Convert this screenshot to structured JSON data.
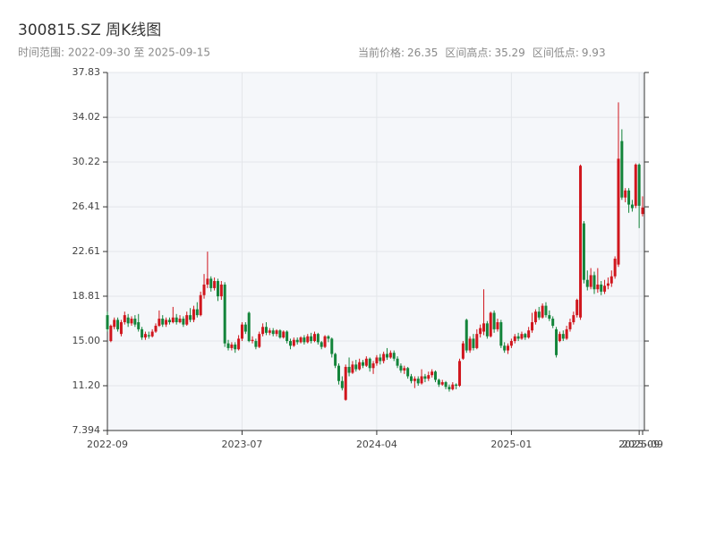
{
  "chart_data": {
    "type": "candlestick",
    "title": "300815.SZ 周K线图",
    "subtitle": "时间范围: 2022-09-30 至 2025-09-15",
    "stats": [
      {
        "label": "当前价格:",
        "value": 26.35
      },
      {
        "label": "区间高点:",
        "value": 35.29
      },
      {
        "label": "区间低点:",
        "value": 9.93
      }
    ],
    "up_color": "#d0161d",
    "down_color": "#13843a",
    "grid": true,
    "ylim": [
      7.394,
      37.83
    ],
    "yticks": [
      7.394,
      {
        "value": 11.2,
        "label": "11.20"
      },
      {
        "value": 15,
        "label": "15.00"
      },
      18.81,
      22.61,
      26.41,
      30.22,
      34.02,
      37.83
    ],
    "categories": [
      "2022-09",
      null,
      null,
      null,
      null,
      null,
      null,
      null,
      null,
      null,
      null,
      null,
      null,
      null,
      null,
      null,
      null,
      null,
      null,
      null,
      null,
      null,
      null,
      null,
      null,
      null,
      null,
      null,
      null,
      null,
      null,
      null,
      null,
      null,
      null,
      null,
      null,
      null,
      null,
      "2023-07",
      null,
      null,
      null,
      null,
      null,
      null,
      null,
      null,
      null,
      null,
      null,
      null,
      null,
      null,
      null,
      null,
      null,
      null,
      null,
      null,
      null,
      null,
      null,
      null,
      null,
      null,
      null,
      null,
      null,
      null,
      null,
      null,
      null,
      null,
      null,
      null,
      null,
      null,
      "2024-04",
      null,
      null,
      null,
      null,
      null,
      null,
      null,
      null,
      null,
      null,
      null,
      null,
      null,
      null,
      null,
      null,
      null,
      null,
      null,
      null,
      null,
      null,
      null,
      null,
      null,
      null,
      null,
      null,
      null,
      null,
      null,
      null,
      null,
      null,
      null,
      null,
      null,
      null,
      "2025-01",
      null,
      null,
      null,
      null,
      null,
      null,
      null,
      null,
      null,
      null,
      null,
      null,
      null,
      null,
      null,
      null,
      null,
      null,
      null,
      null,
      null,
      null,
      null,
      null,
      null,
      null,
      null,
      null,
      null,
      null,
      null,
      null,
      null,
      null,
      null,
      null,
      "2025-09",
      "2025-09"
    ],
    "values": [
      [
        17.2,
        16.0,
        15.8,
        17.5
      ],
      [
        15.0,
        16.3,
        14.9,
        16.4
      ],
      [
        16.2,
        16.8,
        16.0,
        17.0
      ],
      [
        16.8,
        16.0,
        15.8,
        17.0
      ],
      [
        15.6,
        16.6,
        15.4,
        16.8
      ],
      [
        16.6,
        17.2,
        16.4,
        17.5
      ],
      [
        17.0,
        16.5,
        16.2,
        17.3
      ],
      [
        16.5,
        16.9,
        16.3,
        17.1
      ],
      [
        16.9,
        16.4,
        16.2,
        17.2
      ],
      [
        16.6,
        16.0,
        15.8,
        17.3
      ],
      [
        16.0,
        15.3,
        15.1,
        16.2
      ],
      [
        15.3,
        15.6,
        15.1,
        15.8
      ],
      [
        15.5,
        15.4,
        15.2,
        15.8
      ],
      [
        15.4,
        15.8,
        15.3,
        16.0
      ],
      [
        15.8,
        16.3,
        15.7,
        16.5
      ],
      [
        16.3,
        16.9,
        16.2,
        17.6
      ],
      [
        16.9,
        16.4,
        16.2,
        17.2
      ],
      [
        16.4,
        16.8,
        16.2,
        17.0
      ],
      [
        16.8,
        16.6,
        16.4,
        17.0
      ],
      [
        16.6,
        17.0,
        16.5,
        17.9
      ],
      [
        17.0,
        16.6,
        16.4,
        17.3
      ],
      [
        16.6,
        16.9,
        16.5,
        17.2
      ],
      [
        16.9,
        16.4,
        16.2,
        17.1
      ],
      [
        16.4,
        17.2,
        16.3,
        17.5
      ],
      [
        17.2,
        16.8,
        16.6,
        17.8
      ],
      [
        16.8,
        17.7,
        16.6,
        18.0
      ],
      [
        17.7,
        17.2,
        17.0,
        18.3
      ],
      [
        17.2,
        18.9,
        17.1,
        19.2
      ],
      [
        18.9,
        19.8,
        18.6,
        20.7
      ],
      [
        19.8,
        20.3,
        19.5,
        22.6
      ],
      [
        20.3,
        19.5,
        19.2,
        20.5
      ],
      [
        19.5,
        20.1,
        19.3,
        20.4
      ],
      [
        20.1,
        18.8,
        18.4,
        20.3
      ],
      [
        18.8,
        19.8,
        18.5,
        20.1
      ],
      [
        19.8,
        14.8,
        14.5,
        20.0
      ],
      [
        14.8,
        14.4,
        14.2,
        15.1
      ],
      [
        14.4,
        14.7,
        14.2,
        14.9
      ],
      [
        14.7,
        14.3,
        14.0,
        14.9
      ],
      [
        14.3,
        15.2,
        14.2,
        15.5
      ],
      [
        15.2,
        16.4,
        15.0,
        16.6
      ],
      [
        16.4,
        15.8,
        15.6,
        16.6
      ],
      [
        17.4,
        15.0,
        14.9,
        17.5
      ],
      [
        15.0,
        15.1,
        14.8,
        15.4
      ],
      [
        15.0,
        14.5,
        14.3,
        15.2
      ],
      [
        14.5,
        15.6,
        14.4,
        15.8
      ],
      [
        15.6,
        16.2,
        15.4,
        16.5
      ],
      [
        16.2,
        15.7,
        15.5,
        16.6
      ],
      [
        15.7,
        15.9,
        15.5,
        16.1
      ],
      [
        15.9,
        15.6,
        15.4,
        16.1
      ],
      [
        15.6,
        15.9,
        15.4,
        16.0
      ],
      [
        15.9,
        15.3,
        15.2,
        16.0
      ],
      [
        15.3,
        15.8,
        15.2,
        15.9
      ],
      [
        15.8,
        15.0,
        14.8,
        15.9
      ],
      [
        15.0,
        14.6,
        14.3,
        15.2
      ],
      [
        14.6,
        15.1,
        14.5,
        15.3
      ],
      [
        15.1,
        14.9,
        14.7,
        15.3
      ],
      [
        14.9,
        15.3,
        14.8,
        15.4
      ],
      [
        15.3,
        14.9,
        14.7,
        15.5
      ],
      [
        14.9,
        15.4,
        14.8,
        15.6
      ],
      [
        15.4,
        15.0,
        14.8,
        15.7
      ],
      [
        15.0,
        15.6,
        14.9,
        15.8
      ],
      [
        15.6,
        14.9,
        14.7,
        15.7
      ],
      [
        14.9,
        14.5,
        14.3,
        15.0
      ],
      [
        14.5,
        15.4,
        14.4,
        15.5
      ],
      [
        15.4,
        15.2,
        14.9,
        15.5
      ],
      [
        15.2,
        13.9,
        13.6,
        15.3
      ],
      [
        13.9,
        12.9,
        12.7,
        14.0
      ],
      [
        12.9,
        11.6,
        11.3,
        13.1
      ],
      [
        11.6,
        11.0,
        10.8,
        12.0
      ],
      [
        10.0,
        12.8,
        9.93,
        13.0
      ],
      [
        12.8,
        12.3,
        12.0,
        13.6
      ],
      [
        12.3,
        13.0,
        12.2,
        13.3
      ],
      [
        13.0,
        12.6,
        12.4,
        13.4
      ],
      [
        12.6,
        13.2,
        12.5,
        13.5
      ],
      [
        13.2,
        12.9,
        12.7,
        13.4
      ],
      [
        12.9,
        13.5,
        12.8,
        13.7
      ],
      [
        13.5,
        12.7,
        12.4,
        13.6
      ],
      [
        12.7,
        13.1,
        12.2,
        13.3
      ],
      [
        13.1,
        13.6,
        12.9,
        13.8
      ],
      [
        13.6,
        13.3,
        13.0,
        13.9
      ],
      [
        13.3,
        13.9,
        13.1,
        14.1
      ],
      [
        13.9,
        13.6,
        13.4,
        14.4
      ],
      [
        13.6,
        14.0,
        13.5,
        14.2
      ],
      [
        14.0,
        13.5,
        13.3,
        14.2
      ],
      [
        13.5,
        12.9,
        12.7,
        13.7
      ],
      [
        12.9,
        12.5,
        12.3,
        13.1
      ],
      [
        12.5,
        12.7,
        12.2,
        12.9
      ],
      [
        12.7,
        12.0,
        11.8,
        12.8
      ],
      [
        12.0,
        11.6,
        11.4,
        12.2
      ],
      [
        11.6,
        11.8,
        11.0,
        12.0
      ],
      [
        11.8,
        11.4,
        11.2,
        12.0
      ],
      [
        11.4,
        12.0,
        11.3,
        12.6
      ],
      [
        12.0,
        11.8,
        11.5,
        12.2
      ],
      [
        11.8,
        12.1,
        11.6,
        12.4
      ],
      [
        12.1,
        12.4,
        11.9,
        12.6
      ],
      [
        12.4,
        11.7,
        11.5,
        12.5
      ],
      [
        11.7,
        11.3,
        11.1,
        11.8
      ],
      [
        11.3,
        11.5,
        11.2,
        11.7
      ],
      [
        11.5,
        11.1,
        10.9,
        11.6
      ],
      [
        11.1,
        10.9,
        10.7,
        11.3
      ],
      [
        10.9,
        11.3,
        10.8,
        11.5
      ],
      [
        11.3,
        11.2,
        10.9,
        11.4
      ],
      [
        11.2,
        13.3,
        11.1,
        13.5
      ],
      [
        13.5,
        14.8,
        13.4,
        15.0
      ],
      [
        16.8,
        14.2,
        14.0,
        16.9
      ],
      [
        14.2,
        15.2,
        14.0,
        15.4
      ],
      [
        15.2,
        14.4,
        14.2,
        15.6
      ],
      [
        14.4,
        15.6,
        14.3,
        16.0
      ],
      [
        15.6,
        16.1,
        15.3,
        16.4
      ],
      [
        15.8,
        16.5,
        15.5,
        19.4
      ],
      [
        16.5,
        15.4,
        15.2,
        16.7
      ],
      [
        15.4,
        17.4,
        15.3,
        17.5
      ],
      [
        17.4,
        16.0,
        15.7,
        17.6
      ],
      [
        16.0,
        16.6,
        15.8,
        16.9
      ],
      [
        16.6,
        14.6,
        14.4,
        16.8
      ],
      [
        14.6,
        14.2,
        14.0,
        14.9
      ],
      [
        14.2,
        14.6,
        13.9,
        14.8
      ],
      [
        14.6,
        15.0,
        14.4,
        15.2
      ],
      [
        15.0,
        15.4,
        14.8,
        15.6
      ],
      [
        15.4,
        15.2,
        15.0,
        15.7
      ],
      [
        15.2,
        15.6,
        15.1,
        15.8
      ],
      [
        15.6,
        15.3,
        15.1,
        15.7
      ],
      [
        15.3,
        15.9,
        15.2,
        16.2
      ],
      [
        15.9,
        16.6,
        15.7,
        17.4
      ],
      [
        16.6,
        17.5,
        16.4,
        17.7
      ],
      [
        17.5,
        17.0,
        16.8,
        17.9
      ],
      [
        17.0,
        18.0,
        16.9,
        18.2
      ],
      [
        18.0,
        17.2,
        17.0,
        18.3
      ],
      [
        17.2,
        16.9,
        16.7,
        17.6
      ],
      [
        16.9,
        16.3,
        16.1,
        17.1
      ],
      [
        16.0,
        13.8,
        13.6,
        16.2
      ],
      [
        15.0,
        15.6,
        14.9,
        15.8
      ],
      [
        15.6,
        15.2,
        15.0,
        15.9
      ],
      [
        15.2,
        16.0,
        15.1,
        16.3
      ],
      [
        16.0,
        16.6,
        15.8,
        16.9
      ],
      [
        16.6,
        17.2,
        16.4,
        17.5
      ],
      [
        17.2,
        18.5,
        17.0,
        18.6
      ],
      [
        17.0,
        29.9,
        16.8,
        30.0
      ],
      [
        25.0,
        20.2,
        19.9,
        25.2
      ],
      [
        20.2,
        19.6,
        19.3,
        21.0
      ],
      [
        19.6,
        20.6,
        19.4,
        21.2
      ],
      [
        20.6,
        19.4,
        19.0,
        20.9
      ],
      [
        19.4,
        19.8,
        19.1,
        21.2
      ],
      [
        19.8,
        19.2,
        18.9,
        20.1
      ],
      [
        19.2,
        19.7,
        19.0,
        20.2
      ],
      [
        19.7,
        19.9,
        19.4,
        20.4
      ],
      [
        19.9,
        20.5,
        19.6,
        21.0
      ],
      [
        20.5,
        22.0,
        20.3,
        22.2
      ],
      [
        21.5,
        30.5,
        21.3,
        35.29
      ],
      [
        32.0,
        27.2,
        27.0,
        33.0
      ],
      [
        27.2,
        27.8,
        26.8,
        28.0
      ],
      [
        27.8,
        26.6,
        25.9,
        28.0
      ],
      [
        26.6,
        26.3,
        26.0,
        27.0
      ],
      [
        26.5,
        30.0,
        26.3,
        30.1
      ],
      [
        30.0,
        26.5,
        24.6,
        30.1
      ],
      [
        25.8,
        26.35,
        25.6,
        27.3
      ]
    ]
  }
}
